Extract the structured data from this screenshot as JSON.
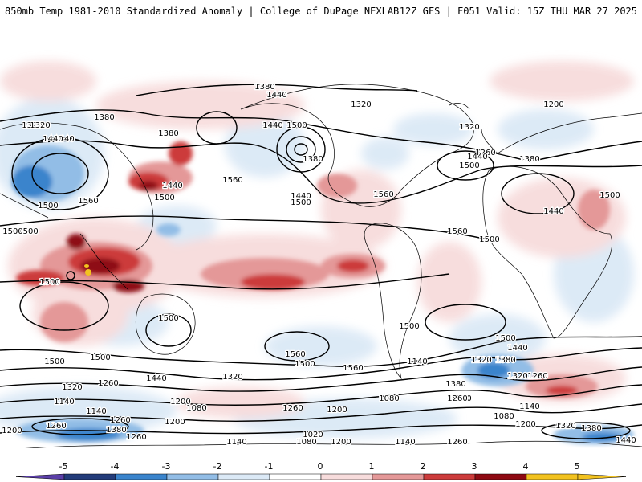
{
  "header": {
    "left": "850mb Temp 1981-2010 Standardized Anomaly | College of DuPage NEXLAB",
    "right": "12Z GFS | F051 Valid: 15Z THU MAR 27 2025"
  },
  "colors": {
    "-5": "#5b3fa8",
    "-4": "#233c7a",
    "-3": "#3a84cc",
    "-2": "#92bde6",
    "-1": "#dbe9f6",
    "0": "#ffffff",
    "1": "#f7dcdc",
    "2": "#e49898",
    "3": "#cc3b3b",
    "4": "#8e0a12",
    "5": "#f2c21f"
  },
  "colorbar": {
    "ticks": [
      "-5",
      "-4",
      "-3",
      "-2",
      "-1",
      "0",
      "1",
      "2",
      "3",
      "4",
      "5"
    ]
  },
  "contour_labels": [
    {
      "text": "1380"
    },
    {
      "text": "1440"
    },
    {
      "text": "1320"
    },
    {
      "text": "1380"
    },
    {
      "text": "1440"
    },
    {
      "text": "1380"
    },
    {
      "text": "1440"
    },
    {
      "text": "1500"
    },
    {
      "text": "1560"
    },
    {
      "text": "1500"
    },
    {
      "text": "1560"
    },
    {
      "text": "1440"
    },
    {
      "text": "1380"
    },
    {
      "text": "1440"
    },
    {
      "text": "1500"
    },
    {
      "text": "1560"
    },
    {
      "text": "1500"
    },
    {
      "text": "1320"
    },
    {
      "text": "1260"
    },
    {
      "text": "1200"
    },
    {
      "text": "1320"
    },
    {
      "text": "1440"
    },
    {
      "text": "1380"
    },
    {
      "text": "1500"
    },
    {
      "text": "1560"
    },
    {
      "text": "1500"
    },
    {
      "text": "1500"
    },
    {
      "text": "1440"
    },
    {
      "text": "1500"
    },
    {
      "text": "1500"
    },
    {
      "text": "1500"
    },
    {
      "text": "1500"
    },
    {
      "text": "1500"
    },
    {
      "text": "1560"
    },
    {
      "text": "1500"
    },
    {
      "text": "1560"
    },
    {
      "text": "1500"
    },
    {
      "text": "1440"
    },
    {
      "text": "1380"
    },
    {
      "text": "1320"
    },
    {
      "text": "1260"
    },
    {
      "text": "1440"
    },
    {
      "text": "1320"
    },
    {
      "text": "1260"
    },
    {
      "text": "1200"
    },
    {
      "text": "1140"
    },
    {
      "text": "1200"
    },
    {
      "text": "1080"
    },
    {
      "text": "1260"
    },
    {
      "text": "1200"
    },
    {
      "text": "1080"
    },
    {
      "text": "1140"
    },
    {
      "text": "1260"
    },
    {
      "text": "1200"
    },
    {
      "text": "1020"
    },
    {
      "text": "1080"
    },
    {
      "text": "1140"
    },
    {
      "text": "1200"
    },
    {
      "text": "1140"
    },
    {
      "text": "1260"
    },
    {
      "text": "1500"
    },
    {
      "text": "1440"
    },
    {
      "text": "1320"
    },
    {
      "text": "1200"
    },
    {
      "text": "1380"
    },
    {
      "text": "1260"
    },
    {
      "text": "1140"
    },
    {
      "text": "1080"
    },
    {
      "text": "1200"
    },
    {
      "text": "1320"
    },
    {
      "text": "1380"
    },
    {
      "text": "1440"
    },
    {
      "text": "1260"
    },
    {
      "text": "1500"
    },
    {
      "text": "1320"
    },
    {
      "text": "1380"
    },
    {
      "text": "1260"
    },
    {
      "text": "1320"
    },
    {
      "text": "1140"
    }
  ]
}
